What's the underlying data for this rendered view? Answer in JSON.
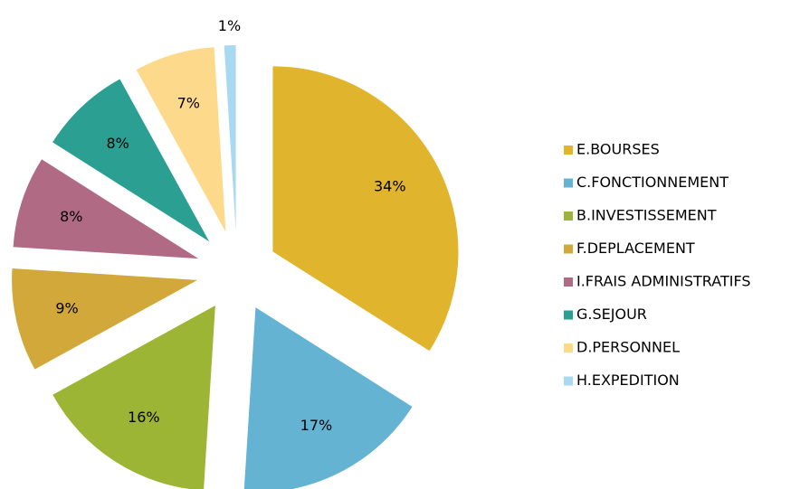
{
  "chart_data": {
    "type": "pie",
    "categories": [
      "E.BOURSES",
      "C.FONCTIONNEMENT",
      "B.INVESTISSEMENT",
      "F.DEPLACEMENT",
      "I.FRAIS ADMINISTRATIFS",
      "G.SEJOUR",
      "D.PERSONNEL",
      "H.EXPEDITION"
    ],
    "values": [
      34,
      17,
      16,
      9,
      8,
      8,
      7,
      1
    ],
    "value_labels": [
      "34%",
      "17%",
      "16%",
      "9%",
      "8%",
      "8%",
      "7%",
      "1%"
    ],
    "colors": [
      "#e0b42c",
      "#65b3d3",
      "#9db535",
      "#d3a83a",
      "#b06a84",
      "#2ba092",
      "#fdd98b",
      "#a8d9f1"
    ],
    "legend": "right",
    "exploded": true
  }
}
